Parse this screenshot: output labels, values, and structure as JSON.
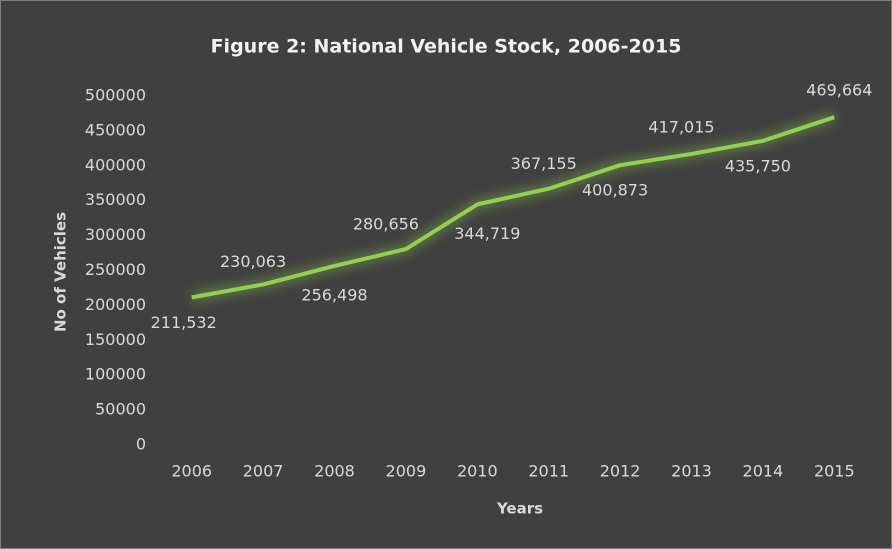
{
  "chart_data": {
    "type": "line",
    "title": "Figure 2: National Vehicle Stock, 2006-2015",
    "x_label": "Years",
    "y_label": "No of Vehicles",
    "categories": [
      "2006",
      "2007",
      "2008",
      "2009",
      "2010",
      "2011",
      "2012",
      "2013",
      "2014",
      "2015"
    ],
    "series": [
      {
        "name": "No of Vehicles",
        "color": "#92d050",
        "values": [
          211532,
          230063,
          256498,
          280656,
          344719,
          367155,
          400873,
          417015,
          435750,
          469664
        ],
        "value_labels": [
          "211,532",
          "230,063",
          "256,498",
          "280,656",
          "344,719",
          "367,155",
          "400,873",
          "417,015",
          "435,750",
          "469,664"
        ]
      }
    ],
    "ylim": [
      0,
      500000
    ],
    "yticks": [
      0,
      50000,
      100000,
      150000,
      200000,
      250000,
      300000,
      350000,
      400000,
      450000,
      500000
    ],
    "grid": false
  }
}
